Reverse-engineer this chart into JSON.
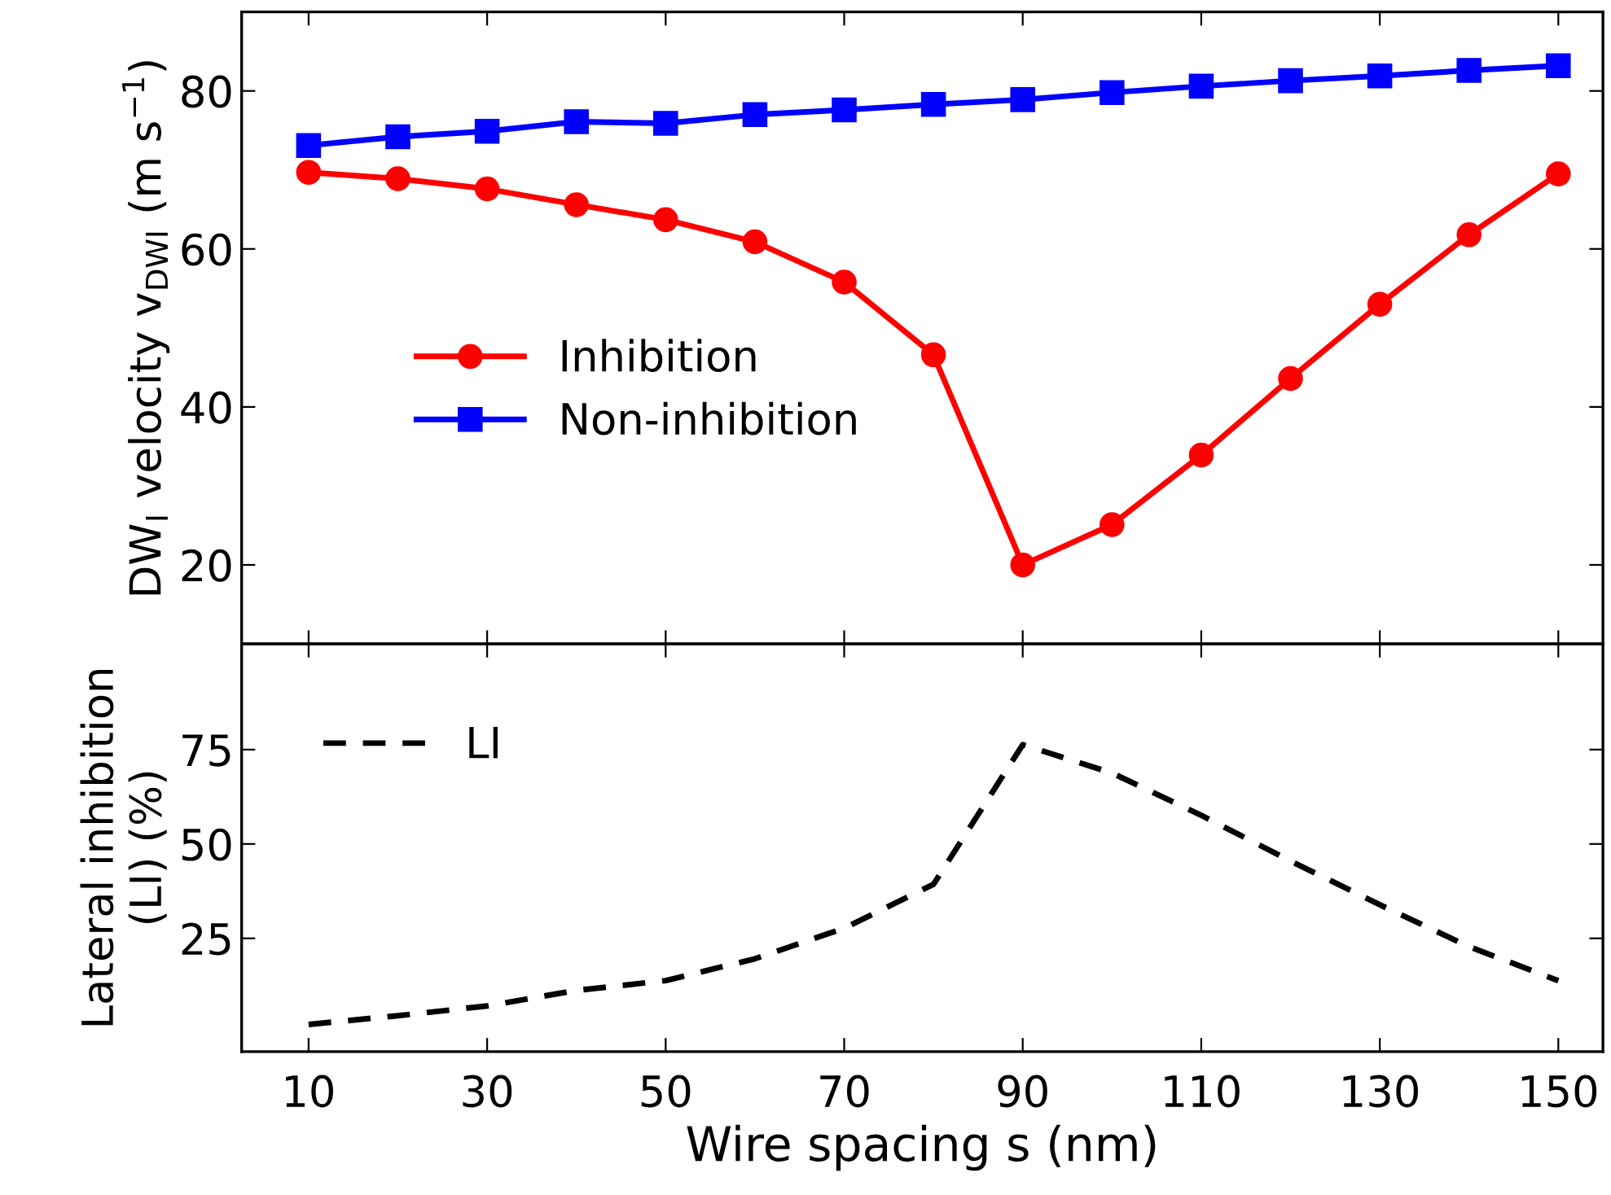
{
  "chart_data": [
    {
      "type": "line",
      "ylabel": "DW$_{I}$ velocity v$_{DWI}$ (m s$^{−1}$)",
      "x": [
        10,
        20,
        30,
        40,
        50,
        60,
        70,
        80,
        90,
        100,
        110,
        120,
        130,
        140,
        150
      ],
      "xlim": [
        2.5,
        155
      ],
      "xticks": [
        10,
        30,
        50,
        70,
        90,
        110,
        130,
        150
      ],
      "ylim": [
        10,
        90
      ],
      "yticks": [
        20,
        40,
        60,
        80
      ],
      "tick_labels": "y",
      "grid": false,
      "legend": "center left",
      "line_style": "solid",
      "series": [
        {
          "name": "Inhibition",
          "color": "#ff0000",
          "marker": "circle",
          "values": [
            69.7,
            68.9,
            67.6,
            65.6,
            63.7,
            60.9,
            55.8,
            46.6,
            20,
            25.1,
            33.9,
            43.6,
            53,
            61.8,
            69.5
          ]
        },
        {
          "name": "Non-inhibition",
          "color": "#0000ff",
          "marker": "square",
          "values": [
            73.1,
            74.2,
            74.9,
            76.1,
            75.9,
            77,
            77.6,
            78.3,
            78.9,
            79.8,
            80.6,
            81.3,
            81.9,
            82.6,
            83.2
          ]
        }
      ]
    },
    {
      "type": "line",
      "xlabel": "Wire spacing s (nm)",
      "ylabel": "Lateral inhibition\n(LI) (%)",
      "x": [
        10,
        20,
        30,
        40,
        50,
        60,
        70,
        80,
        90,
        100,
        110,
        120,
        130,
        140,
        150
      ],
      "xlim": [
        2.5,
        155
      ],
      "xticks": [
        10,
        30,
        50,
        70,
        90,
        110,
        130,
        150
      ],
      "ylim": [
        -5,
        103
      ],
      "yticks": [
        25,
        50,
        75
      ],
      "grid": false,
      "legend": "upper left",
      "line_style": "dashed",
      "series": [
        {
          "name": "LI",
          "color": "#000000",
          "marker": "none",
          "values": [
            2.2,
            4.5,
            7.1,
            11.2,
            13.8,
            19.6,
            27.7,
            39.3,
            76.3,
            68.8,
            57.6,
            45.5,
            33.9,
            22.8,
            13.8
          ]
        }
      ]
    }
  ]
}
